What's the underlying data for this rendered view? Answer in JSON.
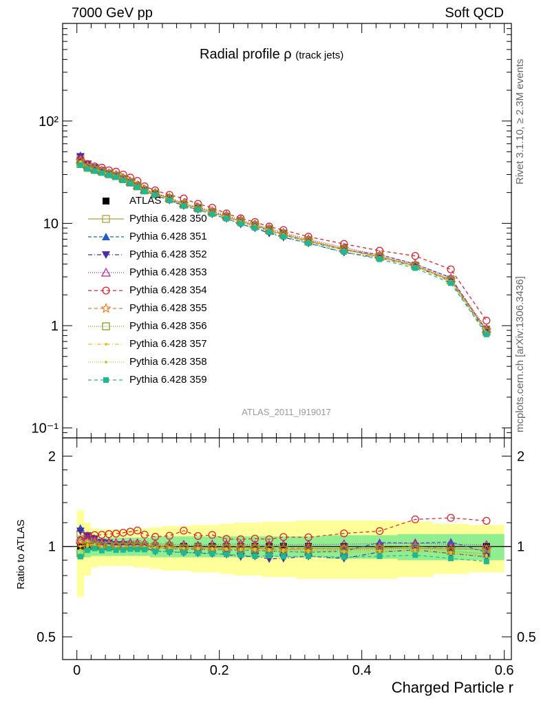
{
  "header": {
    "left": "7000 GeV pp",
    "right": "Soft QCD"
  },
  "side_labels": {
    "rivet": "Rivet 3.1.10, ≥ 2.3M events",
    "mcplots": "mcplots.cern.ch [arXiv:1306.3436]"
  },
  "main_title": {
    "text": "Radial profile ρ",
    "sub": "(track jets)"
  },
  "analysis_tag": "ATLAS_2011_I919017",
  "colors": {
    "data": "#000000",
    "band_inner": "#90ee90",
    "band_outer": "#ffff99"
  },
  "chart_data": [
    {
      "type": "line",
      "title": "Radial profile ρ (track jets)",
      "xlabel": "",
      "ylabel": "",
      "xlim": [
        -0.02,
        0.61
      ],
      "ylim": [
        0.08,
        900
      ],
      "yscale": "log",
      "y_tick_labels": [
        "10⁻¹",
        "1",
        "10",
        "10²"
      ],
      "x": [
        0.005,
        0.015,
        0.025,
        0.035,
        0.045,
        0.055,
        0.065,
        0.075,
        0.085,
        0.095,
        0.11,
        0.13,
        0.15,
        0.17,
        0.19,
        0.21,
        0.23,
        0.25,
        0.27,
        0.29,
        0.325,
        0.375,
        0.425,
        0.475,
        0.525,
        0.575
      ],
      "legend_position": "left",
      "series": [
        {
          "name": "ATLAS",
          "color": "#000000",
          "marker": "square-filled",
          "dash": "",
          "values": [
            40,
            35,
            33,
            32,
            30,
            29,
            27,
            25,
            23,
            21,
            19.5,
            17.5,
            15.5,
            14.3,
            13,
            11.8,
            10.6,
            9.7,
            8.8,
            8.0,
            6.9,
            5.7,
            4.8,
            3.9,
            2.85,
            0.92
          ]
        },
        {
          "name": "Pythia 6.428 350",
          "color": "#b0a040",
          "marker": "square-open",
          "dash": "",
          "values": [
            44,
            37,
            34,
            32.5,
            30.5,
            29.3,
            27.2,
            25.4,
            23.4,
            21.2,
            19.6,
            17.6,
            15.2,
            14.2,
            12.8,
            11.7,
            10.5,
            9.6,
            8.6,
            7.8,
            6.8,
            5.6,
            4.75,
            3.85,
            2.8,
            0.9
          ]
        },
        {
          "name": "Pythia 6.428 351",
          "color": "#1f5ec8",
          "marker": "triangle-up",
          "dash": "5,3",
          "values": [
            46,
            38,
            35,
            33,
            31,
            29.5,
            27.5,
            25.5,
            23.5,
            21.2,
            19.3,
            17.2,
            15.2,
            14,
            12.7,
            11.5,
            10.3,
            9.4,
            8.5,
            7.7,
            6.6,
            5.5,
            4.95,
            4.0,
            2.95,
            0.88
          ]
        },
        {
          "name": "Pythia 6.428 352",
          "color": "#4b2aa8",
          "marker": "triangle-down",
          "dash": "6,3,1,3",
          "values": [
            45,
            38,
            35,
            33,
            30.8,
            29.4,
            27.4,
            25.2,
            23,
            20.8,
            18.8,
            16.8,
            14.8,
            13.6,
            12.3,
            11.1,
            9.8,
            9.0,
            8.0,
            7.3,
            6.4,
            5.2,
            4.6,
            3.8,
            2.7,
            0.85
          ]
        },
        {
          "name": "Pythia 6.428 353",
          "color": "#b0209a",
          "marker": "triangle-open",
          "dash": "1,2",
          "values": [
            42,
            37,
            34.5,
            33,
            31,
            29.8,
            27.8,
            25.7,
            23.6,
            21.5,
            19.9,
            17.8,
            15.7,
            14.4,
            13.2,
            12,
            10.8,
            9.8,
            8.9,
            8.1,
            7.0,
            5.8,
            4.9,
            4.0,
            2.9,
            0.93
          ]
        },
        {
          "name": "Pythia 6.428 354",
          "color": "#e0202a",
          "marker": "circle-open",
          "dash": "5,4",
          "values": [
            42,
            38,
            36,
            35,
            33,
            32,
            30,
            28,
            26,
            23,
            21,
            19,
            17.5,
            15.5,
            14.2,
            12.5,
            11.2,
            10.3,
            9.3,
            8.6,
            7.4,
            6.3,
            5.4,
            4.8,
            3.55,
            1.12
          ]
        },
        {
          "name": "Pythia 6.428 355",
          "color": "#f07a20",
          "marker": "star-open",
          "dash": "5,4",
          "values": [
            41,
            36,
            34,
            32.5,
            30.5,
            29.3,
            27.3,
            25.2,
            23.2,
            21.1,
            19.5,
            17.5,
            15.4,
            14.1,
            12.9,
            11.7,
            10.5,
            9.6,
            8.7,
            7.9,
            6.8,
            5.6,
            4.75,
            3.9,
            2.8,
            0.9
          ]
        },
        {
          "name": "Pythia 6.428 356",
          "color": "#78a020",
          "marker": "square-open",
          "dash": "1,2",
          "values": [
            38,
            35,
            33.5,
            32,
            30.2,
            29,
            27,
            25,
            23,
            21,
            19.4,
            17.4,
            15.3,
            14.1,
            12.8,
            11.6,
            10.4,
            9.5,
            8.6,
            7.8,
            6.7,
            5.55,
            4.7,
            3.85,
            2.75,
            0.87
          ]
        },
        {
          "name": "Pythia 6.428 357",
          "color": "#f0c020",
          "marker": "dot",
          "dash": "6,3,1,3",
          "values": [
            40,
            35.5,
            33.5,
            32,
            30.2,
            29,
            27,
            25,
            23,
            21,
            19.3,
            17.3,
            15.3,
            14.1,
            12.8,
            11.6,
            10.4,
            9.5,
            8.6,
            7.8,
            6.7,
            5.5,
            4.65,
            3.8,
            2.72,
            0.86
          ]
        },
        {
          "name": "Pythia 6.428 358",
          "color": "#c8c830",
          "marker": "dot",
          "dash": "1,2",
          "values": [
            39,
            35,
            33.3,
            31.8,
            30,
            28.8,
            26.8,
            24.9,
            22.9,
            20.9,
            19.2,
            17.2,
            15.2,
            14,
            12.7,
            11.5,
            10.3,
            9.4,
            8.5,
            7.7,
            6.6,
            5.45,
            4.6,
            3.75,
            2.7,
            0.85
          ]
        },
        {
          "name": "Pythia 6.428 359",
          "color": "#20b890",
          "marker": "square-filled-small",
          "dash": "5,4",
          "values": [
            37,
            34,
            32.5,
            31,
            29.5,
            28.2,
            26.3,
            24.5,
            22.5,
            20.5,
            18.8,
            16.8,
            14.8,
            13.6,
            12.3,
            11.1,
            9.9,
            9.0,
            8.2,
            7.4,
            6.4,
            5.25,
            4.45,
            3.65,
            2.6,
            0.82
          ]
        }
      ]
    },
    {
      "type": "line",
      "title": "",
      "xlabel": "Charged Particle r",
      "ylabel": "Ratio to ATLAS",
      "xlim": [
        -0.02,
        0.61
      ],
      "ylim": [
        0.42,
        2.3
      ],
      "yscale": "log",
      "y_ticks": [
        0.5,
        1,
        2
      ],
      "x_ticks": [
        0,
        0.2,
        0.4,
        0.6
      ],
      "band_inner_halfwidth": [
        0.09,
        0.08,
        0.07,
        0.07,
        0.07,
        0.07,
        0.07,
        0.07,
        0.07,
        0.07,
        0.08,
        0.08,
        0.08,
        0.08,
        0.08,
        0.08,
        0.08,
        0.08,
        0.08,
        0.08,
        0.08,
        0.09,
        0.09,
        0.1,
        0.1,
        0.1
      ],
      "band_outer_halfwidth": [
        0.32,
        0.2,
        0.15,
        0.14,
        0.14,
        0.14,
        0.14,
        0.14,
        0.15,
        0.15,
        0.16,
        0.17,
        0.17,
        0.18,
        0.18,
        0.19,
        0.2,
        0.2,
        0.21,
        0.21,
        0.22,
        0.22,
        0.22,
        0.21,
        0.19,
        0.18
      ]
    }
  ]
}
